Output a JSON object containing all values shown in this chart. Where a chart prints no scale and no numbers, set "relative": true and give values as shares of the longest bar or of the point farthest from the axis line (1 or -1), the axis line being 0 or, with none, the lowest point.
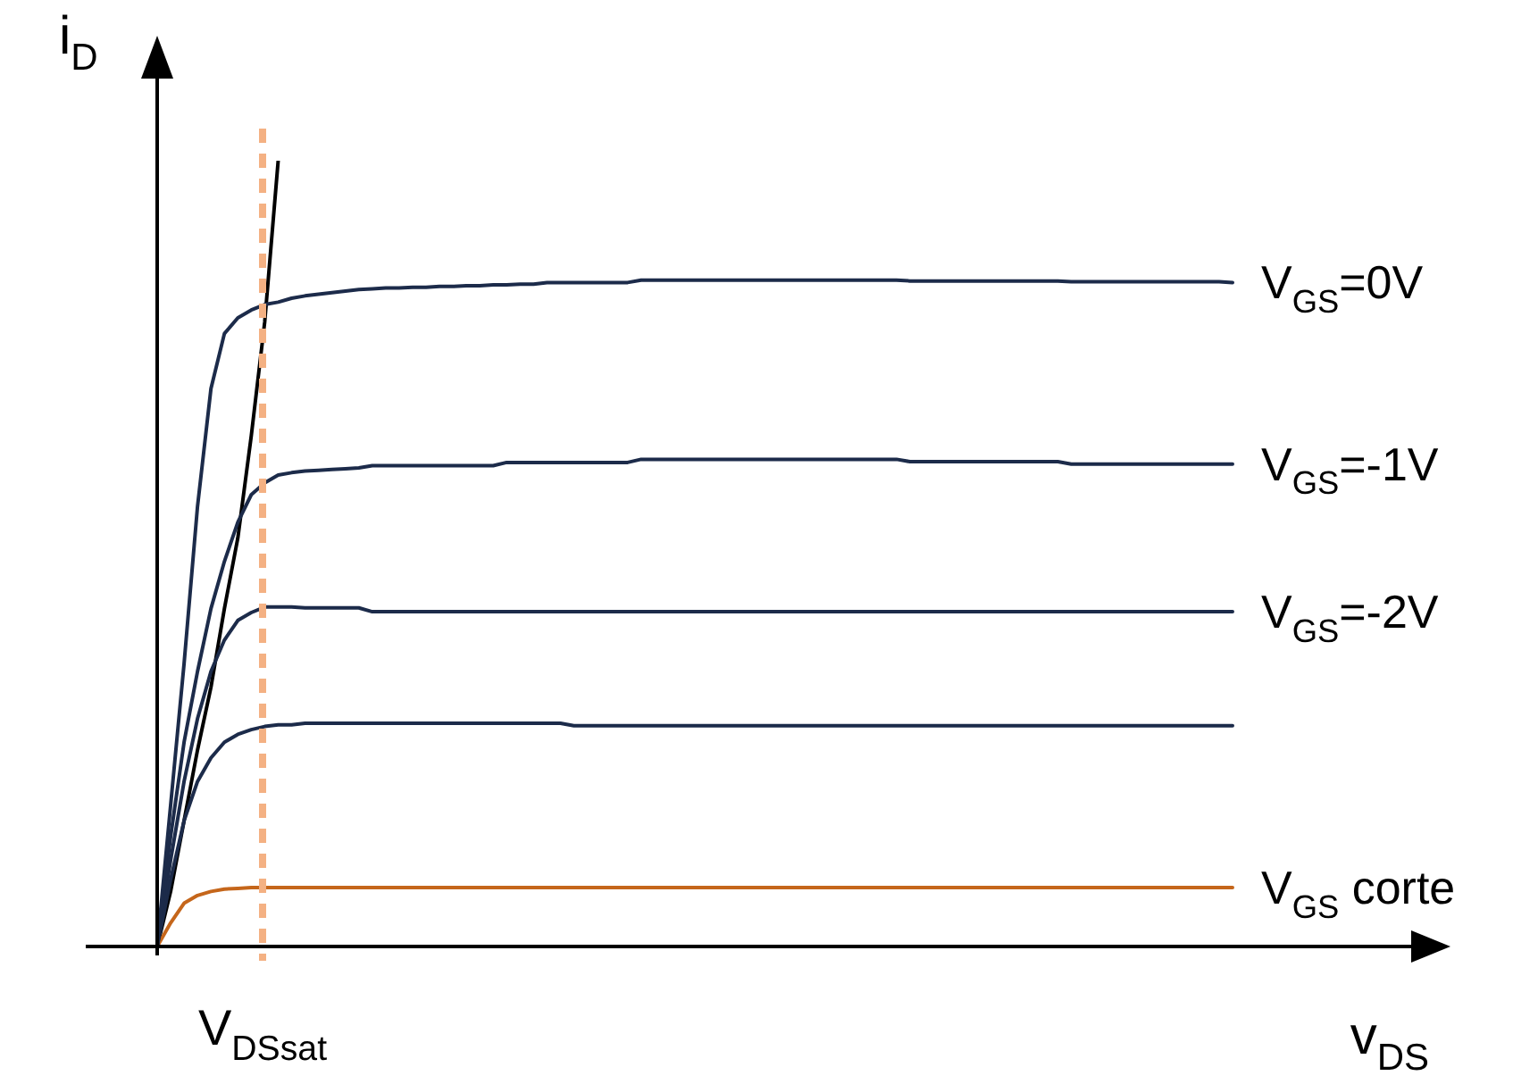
{
  "chart_data": {
    "type": "line",
    "relative": true,
    "xlabel": "v$_{DS}$",
    "ylabel": "i$_{D}$",
    "tick_labels": false,
    "legend": false,
    "marker": "none",
    "line_style": "solid",
    "categories": [
      null,
      null,
      null,
      null,
      null,
      null,
      null,
      null,
      null,
      null,
      null,
      null,
      null,
      null,
      null,
      null,
      null,
      null,
      null,
      null,
      null,
      null,
      null,
      null,
      null,
      null,
      null,
      null,
      null,
      null,
      null,
      null,
      null,
      null,
      null,
      null,
      null,
      null,
      null,
      null,
      null,
      null,
      null,
      null,
      null,
      null,
      null,
      null,
      null,
      null,
      null,
      null,
      null,
      null,
      null,
      null,
      null,
      null,
      null,
      null,
      null,
      null,
      null,
      null,
      null,
      null,
      null,
      null,
      null,
      null,
      null,
      null,
      null,
      null,
      null,
      null,
      null,
      null,
      null,
      null,
      null
    ],
    "annotations": [
      "V$_{DSsat}$"
    ],
    "series": [
      {
        "name": "V$_{GS}$=0V",
        "color": "#1c2b4a",
        "values": [
          0,
          0.18,
          0.36,
          0.56,
          0.71,
          0.78,
          0.8,
          0.81,
          0.817,
          0.82,
          0.825,
          0.828,
          0.83,
          0.832,
          0.834,
          0.836,
          0.837,
          0.838,
          0.838,
          0.839,
          0.839,
          0.84,
          0.84,
          0.841,
          0.841,
          0.842,
          0.842,
          0.843,
          0.843,
          0.845,
          0.845,
          0.845,
          0.845,
          0.845,
          0.845,
          0.845,
          0.848,
          0.848,
          0.848,
          0.848,
          0.848,
          0.848,
          0.848,
          0.848,
          0.848,
          0.848,
          0.848,
          0.848,
          0.848,
          0.848,
          0.848,
          0.848,
          0.848,
          0.848,
          0.848,
          0.848,
          0.847,
          0.847,
          0.847,
          0.847,
          0.847,
          0.847,
          0.847,
          0.847,
          0.847,
          0.847,
          0.847,
          0.847,
          0.846,
          0.846,
          0.846,
          0.846,
          0.846,
          0.846,
          0.846,
          0.846,
          0.846,
          0.846,
          0.846,
          0.846,
          0.845
        ]
      },
      {
        "name": "V$_{GS}$=-1V",
        "color": "#1c2b4a",
        "values": [
          0,
          0.14,
          0.26,
          0.35,
          0.43,
          0.49,
          0.54,
          0.575,
          0.59,
          0.6,
          0.603,
          0.605,
          0.606,
          0.607,
          0.608,
          0.609,
          0.612,
          0.612,
          0.612,
          0.612,
          0.612,
          0.612,
          0.612,
          0.612,
          0.612,
          0.612,
          0.616,
          0.616,
          0.616,
          0.616,
          0.616,
          0.616,
          0.616,
          0.616,
          0.616,
          0.616,
          0.62,
          0.62,
          0.62,
          0.62,
          0.62,
          0.62,
          0.62,
          0.62,
          0.62,
          0.62,
          0.62,
          0.62,
          0.62,
          0.62,
          0.62,
          0.62,
          0.62,
          0.62,
          0.62,
          0.62,
          0.617,
          0.617,
          0.617,
          0.617,
          0.617,
          0.617,
          0.617,
          0.617,
          0.617,
          0.617,
          0.617,
          0.617,
          0.614,
          0.614,
          0.614,
          0.614,
          0.614,
          0.614,
          0.614,
          0.614,
          0.614,
          0.614,
          0.614,
          0.614,
          0.614
        ]
      },
      {
        "name": "V$_{GS}$=-2V",
        "color": "#1c2b4a",
        "values": [
          0,
          0.11,
          0.21,
          0.29,
          0.35,
          0.39,
          0.415,
          0.425,
          0.432,
          0.432,
          0.432,
          0.431,
          0.431,
          0.431,
          0.431,
          0.431,
          0.426,
          0.426,
          0.426,
          0.426,
          0.426,
          0.426,
          0.426,
          0.426,
          0.426,
          0.426,
          0.426,
          0.426,
          0.426,
          0.426,
          0.426,
          0.426,
          0.426,
          0.426,
          0.426,
          0.426,
          0.426,
          0.426,
          0.426,
          0.426,
          0.426,
          0.426,
          0.426,
          0.426,
          0.426,
          0.426,
          0.426,
          0.426,
          0.426,
          0.426,
          0.426,
          0.426,
          0.426,
          0.426,
          0.426,
          0.426,
          0.426,
          0.426,
          0.426,
          0.426,
          0.426,
          0.426,
          0.426,
          0.426,
          0.426,
          0.426,
          0.426,
          0.426,
          0.426,
          0.426,
          0.426,
          0.426,
          0.426,
          0.426,
          0.426,
          0.426,
          0.426,
          0.426,
          0.426,
          0.426,
          0.426
        ]
      },
      {
        "color": "#1c2b4a",
        "values": [
          0,
          0.085,
          0.16,
          0.21,
          0.24,
          0.26,
          0.27,
          0.276,
          0.28,
          0.282,
          0.282,
          0.284,
          0.284,
          0.284,
          0.284,
          0.284,
          0.284,
          0.284,
          0.284,
          0.284,
          0.284,
          0.284,
          0.284,
          0.284,
          0.284,
          0.284,
          0.284,
          0.284,
          0.284,
          0.284,
          0.284,
          0.281,
          0.281,
          0.281,
          0.281,
          0.281,
          0.281,
          0.281,
          0.281,
          0.281,
          0.281,
          0.281,
          0.281,
          0.281,
          0.281,
          0.281,
          0.281,
          0.281,
          0.281,
          0.281,
          0.281,
          0.281,
          0.281,
          0.281,
          0.281,
          0.281,
          0.281,
          0.281,
          0.281,
          0.281,
          0.281,
          0.281,
          0.281,
          0.281,
          0.281,
          0.281,
          0.281,
          0.281,
          0.281,
          0.281,
          0.281,
          0.281,
          0.281,
          0.281,
          0.281,
          0.281,
          0.281,
          0.281,
          0.281,
          0.281,
          0.281
        ]
      },
      {
        "name": "V$_{GS}$ corte",
        "color": "#c5661b",
        "values": [
          0,
          0.03,
          0.055,
          0.065,
          0.07,
          0.073,
          0.074,
          0.075,
          0.075,
          0.075,
          0.075,
          0.075,
          0.075,
          0.075,
          0.075,
          0.075,
          0.075,
          0.075,
          0.075,
          0.075,
          0.075,
          0.075,
          0.075,
          0.075,
          0.075,
          0.075,
          0.075,
          0.075,
          0.075,
          0.075,
          0.075,
          0.075,
          0.075,
          0.075,
          0.075,
          0.075,
          0.075,
          0.075,
          0.075,
          0.075,
          0.075,
          0.075,
          0.075,
          0.075,
          0.075,
          0.075,
          0.075,
          0.075,
          0.075,
          0.075,
          0.075,
          0.075,
          0.075,
          0.075,
          0.075,
          0.075,
          0.075,
          0.075,
          0.075,
          0.075,
          0.075,
          0.075,
          0.075,
          0.075,
          0.075,
          0.075,
          0.075,
          0.075,
          0.075,
          0.075,
          0.075,
          0.075,
          0.075,
          0.075,
          0.075,
          0.075,
          0.075,
          0.075,
          0.075,
          0.075,
          0.075
        ]
      },
      {
        "color": "#000000",
        "values": [
          0,
          0.07,
          0.16,
          0.25,
          0.33,
          0.43,
          0.52,
          0.65,
          0.795,
          1.0,
          null,
          null,
          null,
          null,
          null,
          null,
          null,
          null,
          null,
          null,
          null,
          null,
          null,
          null,
          null,
          null,
          null,
          null,
          null,
          null,
          null,
          null,
          null,
          null,
          null,
          null,
          null,
          null,
          null,
          null,
          null,
          null,
          null,
          null,
          null,
          null,
          null,
          null,
          null,
          null,
          null,
          null,
          null,
          null,
          null,
          null,
          null,
          null,
          null,
          null,
          null,
          null,
          null,
          null,
          null,
          null,
          null,
          null,
          null,
          null,
          null,
          null,
          null,
          null,
          null,
          null,
          null,
          null,
          null,
          null,
          null
        ]
      }
    ]
  }
}
